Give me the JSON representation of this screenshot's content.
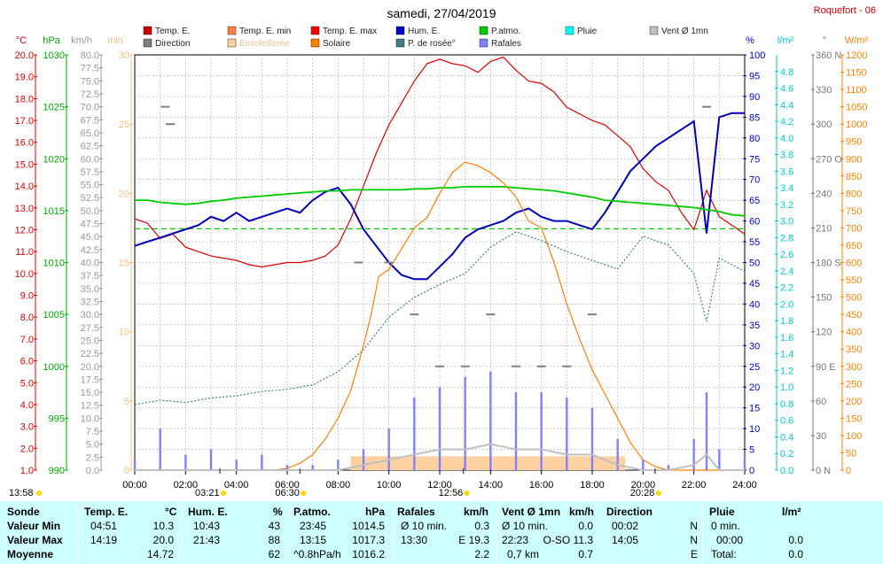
{
  "title": "samedi, 27/04/2019",
  "station": "Roquefort - 06",
  "legend": [
    {
      "label": "Temp. E.",
      "color": "#cc0000"
    },
    {
      "label": "Temp. E. min",
      "color": "#ff8040"
    },
    {
      "label": "Temp. E. max",
      "color": "#ff0000"
    },
    {
      "label": "Hum. E.",
      "color": "#0000cc"
    },
    {
      "label": "P.atmo.",
      "color": "#00cc00"
    },
    {
      "label": "Pluie",
      "color": "#00ffff"
    },
    {
      "label": "Vent Ø 1mn",
      "color": "#c0c0c0"
    },
    {
      "label": "Direction",
      "color": "#808080"
    },
    {
      "label": "Ensoleilleme",
      "color": "#ffd0a0"
    },
    {
      "label": "Solaire",
      "color": "#ff8000"
    },
    {
      "label": "P. de rosée°",
      "color": "#408080"
    },
    {
      "label": "Rafales",
      "color": "#8080ff"
    }
  ],
  "axis_units": {
    "temp": "°C",
    "pres": "hPa",
    "wind": "km/h",
    "sun": "min",
    "hum": "%",
    "rain": "l/m²",
    "dir": "°",
    "solar": "W/m²"
  },
  "event_labels": {
    "start": "13:58",
    "sunrise": "06:30",
    "tmin_time": "03:21",
    "tmax_time": "12:56",
    "sunset": "20:28"
  },
  "table": {
    "headers": [
      "Sonde",
      "Temp. E.",
      "°C",
      "Hum. E.",
      "%",
      "P.atmo.",
      "hPa",
      "Rafales",
      "km/h",
      "Vent Ø 1mn",
      "km/h",
      "Direction",
      "Pluie",
      "l/m²"
    ],
    "rows": [
      {
        "label": "Valeur Min",
        "temp_t": "04:51",
        "temp_v": "10.3",
        "hum_t": "10:43",
        "hum_v": "43",
        "pres_t": "23:45",
        "pres_v": "1014.5",
        "raf_t": "Ø 10 min.",
        "raf_v": "0.3",
        "vent_t": "Ø 10 min.",
        "vent_v": "0.0",
        "dir_t": "00:02",
        "dir_v": "N",
        "pluie_t": "0 min.",
        "pluie_v": ""
      },
      {
        "label": "Valeur Max",
        "temp_t": "14:19",
        "temp_v": "20.0",
        "hum_t": "21:43",
        "hum_v": "88",
        "pres_t": "13:15",
        "pres_v": "1017.3",
        "raf_t": "13:30",
        "raf_v": "E 19.3",
        "vent_t": "22:23",
        "vent_v": "O-SO 11.3",
        "dir_t": "14:05",
        "dir_v": "N",
        "pluie_t": "00:00",
        "pluie_v": "0.0"
      },
      {
        "label": "Moyenne",
        "temp_t": "",
        "temp_v": "14.72",
        "hum_t": "",
        "hum_v": "62",
        "pres_t": "^0.8hPa/h",
        "pres_v": "1016.2",
        "raf_t": "",
        "raf_v": "2.2",
        "vent_t": "0,7 km",
        "vent_v": "0.7",
        "dir_t": "",
        "dir_v": "E",
        "pluie_t": "Total:",
        "pluie_v": "0.0"
      }
    ]
  },
  "chart_data": {
    "type": "line",
    "x_unit": "hour of day",
    "xlim": [
      0,
      24
    ],
    "x_ticks": [
      "00:00",
      "02:00",
      "04:00",
      "06:00",
      "08:00",
      "10:00",
      "12:00",
      "14:00",
      "16:00",
      "18:00",
      "20:00",
      "22:00",
      "24:00"
    ],
    "axes": {
      "temp": {
        "unit": "°C",
        "range": [
          1,
          20
        ],
        "ticks": [
          "1.0",
          "2.0",
          "3.0",
          "4.0",
          "5.0",
          "6.0",
          "7.0",
          "8.0",
          "9.0",
          "10.0",
          "11.0",
          "12.0",
          "13.0",
          "14.0",
          "15.0",
          "16.0",
          "17.0",
          "18.0",
          "19.0",
          "20.0"
        ]
      },
      "pres": {
        "unit": "hPa",
        "range": [
          990,
          1030
        ],
        "ticks": [
          "990",
          "995",
          "1000",
          "1005",
          "1010",
          "1015",
          "1020",
          "1025",
          "1030"
        ]
      },
      "wind": {
        "unit": "km/h",
        "range": [
          0,
          80
        ],
        "ticks": [
          "0.0",
          "2.5",
          "5.0",
          "7.5",
          "10.0",
          "12.5",
          "15.0",
          "17.5",
          "20.0",
          "22.5",
          "25.0",
          "27.5",
          "30.0",
          "32.5",
          "35.0",
          "37.5",
          "40.0",
          "42.5",
          "45.0",
          "47.5",
          "50.0",
          "52.5",
          "55.0",
          "57.5",
          "60.0",
          "62.5",
          "65.0",
          "67.5",
          "70.0",
          "72.5",
          "75.0",
          "77.5",
          "80.0"
        ]
      },
      "sun": {
        "unit": "min",
        "range": [
          0,
          30
        ],
        "ticks": [
          "0",
          "5",
          "10",
          "15",
          "20",
          "25",
          "30"
        ]
      },
      "hum": {
        "unit": "%",
        "range": [
          0,
          100
        ],
        "ticks": [
          "0",
          "5",
          "10",
          "15",
          "20",
          "25",
          "30",
          "35",
          "40",
          "45",
          "50",
          "55",
          "60",
          "65",
          "70",
          "75",
          "80",
          "85",
          "90",
          "95",
          "100"
        ]
      },
      "rain": {
        "unit": "l/m²",
        "range": [
          0,
          5
        ],
        "ticks": [
          "0.0",
          "0.2",
          "0.4",
          "0.6",
          "0.8",
          "1.0",
          "1.2",
          "1.4",
          "1.6",
          "1.8",
          "2.0",
          "2.2",
          "2.4",
          "2.6",
          "2.8",
          "3.0",
          "3.2",
          "3.4",
          "3.6",
          "3.8",
          "4.0",
          "4.2",
          "4.4",
          "4.6",
          "4.8"
        ]
      },
      "dir": {
        "unit": "°",
        "range": [
          0,
          360
        ],
        "ticks": [
          "0 N",
          "30",
          "60",
          "90 E",
          "120",
          "150",
          "180 S",
          "210",
          "240",
          "270 O",
          "300",
          "330",
          "360 N"
        ]
      },
      "solar": {
        "unit": "W/m²",
        "range": [
          0,
          1200
        ],
        "ticks": [
          "0",
          "50",
          "100",
          "150",
          "200",
          "250",
          "300",
          "350",
          "400",
          "450",
          "500",
          "550",
          "600",
          "650",
          "700",
          "750",
          "800",
          "850",
          "900",
          "950",
          "1000",
          "1050",
          "1100",
          "1150",
          "1200"
        ]
      }
    },
    "series": [
      {
        "name": "Temp. E.",
        "axis": "temp",
        "color": "#dd0000",
        "x": [
          0,
          0.5,
          1,
          1.5,
          2,
          2.5,
          3,
          3.5,
          4,
          4.5,
          5,
          5.5,
          6,
          6.5,
          7,
          7.5,
          8,
          8.5,
          9,
          9.5,
          10,
          10.5,
          11,
          11.5,
          12,
          12.5,
          13,
          13.5,
          14,
          14.5,
          15,
          15.5,
          16,
          16.5,
          17,
          17.5,
          18,
          18.5,
          19,
          19.5,
          20,
          20.5,
          21,
          21.5,
          22,
          22.5,
          23,
          23.5,
          24
        ],
        "y": [
          12.5,
          12.3,
          11.6,
          11.8,
          11.2,
          11.0,
          10.8,
          10.7,
          10.6,
          10.4,
          10.3,
          10.4,
          10.5,
          10.5,
          10.6,
          10.8,
          11.3,
          12.5,
          14.0,
          15.5,
          16.8,
          17.8,
          18.8,
          19.6,
          19.8,
          19.6,
          19.5,
          19.2,
          19.7,
          19.9,
          19.3,
          18.8,
          18.7,
          18.3,
          17.6,
          17.3,
          17.0,
          16.8,
          16.3,
          15.8,
          14.8,
          14.2,
          13.8,
          12.8,
          12.0,
          13.8,
          12.6,
          12.2,
          11.8
        ]
      },
      {
        "name": "Hum. E.",
        "axis": "hum",
        "color": "#0000bb",
        "x": [
          0,
          0.5,
          1,
          1.5,
          2,
          2.5,
          3,
          3.5,
          4,
          4.5,
          5,
          5.5,
          6,
          6.5,
          7,
          7.5,
          8,
          8.5,
          9,
          9.5,
          10,
          10.5,
          11,
          11.5,
          12,
          12.5,
          13,
          13.5,
          14,
          14.5,
          15,
          15.5,
          16,
          16.5,
          17,
          17.5,
          18,
          18.5,
          19,
          19.5,
          20,
          20.5,
          21,
          21.5,
          22,
          22.5,
          23,
          23.5,
          24
        ],
        "y": [
          54,
          55,
          56,
          57,
          58,
          59,
          61,
          60,
          62,
          60,
          61,
          62,
          63,
          62,
          65,
          67,
          68,
          64,
          58,
          54,
          50,
          47,
          46,
          46,
          49,
          52,
          56,
          58,
          59,
          60,
          62,
          63,
          61,
          60,
          60,
          59,
          58,
          62,
          67,
          72,
          75,
          78,
          80,
          82,
          84,
          57,
          85,
          86,
          86
        ]
      },
      {
        "name": "P.atmo.",
        "axis": "pres",
        "color": "#00cc00",
        "x": [
          0,
          0.5,
          1,
          1.5,
          2,
          2.5,
          3,
          3.5,
          4,
          4.5,
          5,
          5.5,
          6,
          6.5,
          7,
          7.5,
          8,
          8.5,
          9,
          9.5,
          10,
          10.5,
          11,
          11.5,
          12,
          12.5,
          13,
          13.5,
          14,
          14.5,
          15,
          15.5,
          16,
          16.5,
          17,
          17.5,
          18,
          18.5,
          19,
          19.5,
          20,
          20.5,
          21,
          21.5,
          22,
          22.5,
          23,
          23.5,
          24
        ],
        "y": [
          1016.0,
          1016.0,
          1015.8,
          1015.7,
          1015.6,
          1015.7,
          1015.9,
          1016.0,
          1016.2,
          1016.3,
          1016.4,
          1016.5,
          1016.6,
          1016.7,
          1016.8,
          1016.9,
          1016.9,
          1017.0,
          1017.0,
          1017.0,
          1017.0,
          1017.0,
          1017.1,
          1017.1,
          1017.2,
          1017.2,
          1017.3,
          1017.3,
          1017.3,
          1017.3,
          1017.2,
          1017.1,
          1017.0,
          1016.9,
          1016.7,
          1016.5,
          1016.3,
          1016.0,
          1015.9,
          1015.8,
          1015.7,
          1015.6,
          1015.5,
          1015.4,
          1015.3,
          1015.1,
          1014.9,
          1014.6,
          1014.5
        ]
      },
      {
        "name": "P. de rosée°",
        "axis": "temp",
        "color": "#408080",
        "x": [
          0,
          1,
          2,
          3,
          4,
          5,
          6,
          7,
          8,
          9,
          10,
          11,
          12,
          13,
          14,
          15,
          16,
          17,
          18,
          19,
          20,
          21,
          22,
          22.5,
          23,
          24
        ],
        "y": [
          4.0,
          4.2,
          4.1,
          4.3,
          4.4,
          4.6,
          4.7,
          4.9,
          5.5,
          6.5,
          8.0,
          8.9,
          9.5,
          10.0,
          11.2,
          11.9,
          11.5,
          11.0,
          10.6,
          10.2,
          11.7,
          11.3,
          10.0,
          7.8,
          10.7,
          10.1
        ]
      },
      {
        "name": "Solaire",
        "axis": "solar",
        "color": "#ff8000",
        "x": [
          0,
          5.5,
          6.0,
          6.5,
          7,
          7.5,
          8,
          8.5,
          9,
          9.3,
          9.6,
          10,
          10.5,
          11,
          11.5,
          12,
          12.5,
          13,
          13.5,
          14,
          14.5,
          15,
          15.5,
          16,
          16.5,
          17,
          17.5,
          18,
          18.5,
          19,
          19.5,
          20,
          20.5,
          21,
          24
        ],
        "y": [
          0,
          0,
          5,
          20,
          45,
          90,
          150,
          230,
          360,
          450,
          560,
          580,
          640,
          700,
          730,
          800,
          860,
          890,
          880,
          860,
          830,
          790,
          720,
          700,
          600,
          480,
          380,
          290,
          220,
          150,
          80,
          30,
          10,
          0,
          0
        ]
      },
      {
        "name": "Rafales",
        "axis": "wind",
        "color": "#8080ff",
        "x": [
          0,
          1,
          2,
          3,
          4,
          5,
          6,
          7,
          8,
          9,
          10,
          11,
          12,
          13,
          14,
          15,
          16,
          17,
          18,
          19,
          20,
          21,
          22,
          22.5,
          23,
          24
        ],
        "y": [
          2,
          8,
          3,
          4,
          2,
          3,
          1,
          1,
          2,
          4,
          8,
          14,
          16,
          18,
          19,
          15,
          15,
          14,
          12,
          6,
          2,
          1,
          6,
          15,
          4,
          3
        ]
      },
      {
        "name": "Vent Ø 1mn",
        "axis": "wind",
        "color": "#c0c0c0",
        "x": [
          0,
          4,
          8,
          9,
          10,
          11,
          12,
          13,
          14,
          15,
          16,
          17,
          18,
          19,
          20,
          21,
          22,
          22.5,
          23,
          24
        ],
        "y": [
          0,
          0,
          0,
          1,
          2,
          3,
          4,
          4,
          5,
          4,
          4,
          3,
          3,
          1,
          0,
          0,
          1,
          3,
          0,
          0
        ]
      },
      {
        "name": "Direction",
        "axis": "dir",
        "color": "#808080",
        "x": [
          1.2,
          1.4,
          8.8,
          10,
          11,
          12,
          13,
          14,
          15,
          16,
          17,
          18,
          22.5
        ],
        "y": [
          315,
          300,
          180,
          180,
          135,
          90,
          90,
          135,
          90,
          90,
          90,
          135,
          315
        ]
      }
    ],
    "sunshine_band": {
      "from": 8.5,
      "to": 19.3,
      "value_min": 1
    }
  }
}
